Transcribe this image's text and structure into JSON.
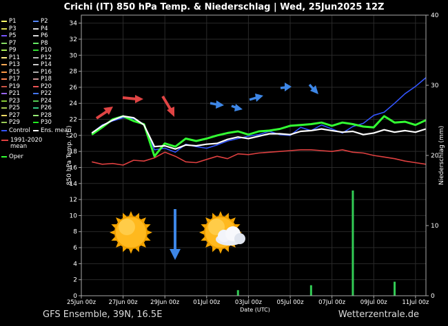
{
  "chart_data": {
    "type": "line",
    "title": "Crichi  (IT)  850 hPa Temp. & Niederschlag | Wed, 25Jun2025 12Z",
    "ylabel": "850 hPa Temp. (°C)",
    "y2label": "Niederschlag (mm)",
    "xlabel": "Date (UTC)",
    "ylim": [
      0,
      35
    ],
    "y2lim": [
      0,
      40
    ],
    "yticks": [
      0,
      2,
      4,
      6,
      8,
      10,
      12,
      14,
      16,
      18,
      20,
      22,
      24,
      26,
      28,
      30,
      32,
      34
    ],
    "y2ticks": [
      0,
      10,
      20,
      30,
      40
    ],
    "x_dates": [
      "25Jun 00z",
      "27Jun 00z",
      "29Jun 00z",
      "01Jul 00z",
      "03Jul 00z",
      "05Jul 00z",
      "07Jul 00z",
      "09Jul 00z",
      "11Jul 00z"
    ],
    "grid": true,
    "legend_position": "left outside",
    "x": [
      0.5,
      1.0,
      1.5,
      2.0,
      2.5,
      3.0,
      3.5,
      4.0,
      4.5,
      5.0,
      5.5,
      6.0,
      6.5,
      7.0,
      7.5,
      8.0,
      8.5,
      9.0,
      9.5,
      10.0,
      10.5,
      11.0,
      11.5,
      12.0,
      12.5,
      13.0,
      13.5,
      14.0,
      14.5,
      15.0,
      15.5,
      16.0,
      16.5
    ],
    "series": [
      {
        "name": "Ens. mean",
        "color": "#ffffff",
        "values": [
          20.3,
          21.2,
          21.9,
          22.4,
          22.2,
          21.3,
          18.6,
          18.7,
          18.3,
          18.8,
          18.7,
          18.9,
          19.0,
          19.5,
          19.8,
          19.6,
          19.9,
          20.2,
          20.2,
          20.1,
          20.5,
          20.6,
          20.8,
          20.6,
          20.4,
          20.5,
          20.1,
          20.3,
          20.7,
          20.4,
          20.6,
          20.4,
          20.8
        ]
      },
      {
        "name": "1991-2020 mean",
        "color": "#e04040",
        "values": [
          16.7,
          16.4,
          16.5,
          16.3,
          16.9,
          16.8,
          17.2,
          17.9,
          17.4,
          16.7,
          16.6,
          17.0,
          17.4,
          17.1,
          17.7,
          17.6,
          17.8,
          17.9,
          18.0,
          18.1,
          18.2,
          18.2,
          18.1,
          18.0,
          18.2,
          17.9,
          17.8,
          17.5,
          17.3,
          17.1,
          16.8,
          16.6,
          16.4
        ]
      },
      {
        "name": "Oper",
        "color": "#33ff33",
        "values": [
          20.1,
          21.0,
          22.0,
          22.4,
          21.8,
          21.4,
          17.4,
          19.0,
          18.6,
          19.6,
          19.3,
          19.6,
          20.0,
          20.3,
          20.5,
          20.1,
          20.5,
          20.6,
          20.8,
          21.2,
          21.3,
          21.4,
          21.6,
          21.2,
          21.6,
          21.4,
          21.1,
          21.0,
          22.4,
          21.6,
          21.7,
          21.3,
          21.9
        ]
      },
      {
        "name": "Control",
        "color": "#3355ff",
        "values": [
          20.3,
          21.3,
          21.8,
          22.2,
          22.1,
          21.4,
          18.2,
          18.4,
          17.9,
          18.9,
          18.6,
          18.4,
          18.8,
          19.3,
          19.6,
          19.9,
          20.1,
          20.5,
          20.1,
          20.0,
          21.0,
          20.6,
          21.3,
          20.8,
          20.3,
          21.1,
          21.5,
          22.5,
          22.9,
          24.0,
          25.2,
          26.1,
          27.2
        ]
      }
    ],
    "precipitation_mm": {
      "x": [
        7.5,
        11.0,
        13.0,
        15.0
      ],
      "values": [
        0.8,
        1.5,
        15.0,
        2.0
      ]
    },
    "legend": [
      [
        "P1",
        "P2"
      ],
      [
        "P3",
        "P4"
      ],
      [
        "P5",
        "P6"
      ],
      [
        "P7",
        "P8"
      ],
      [
        "P9",
        "P10"
      ],
      [
        "P11",
        "P12"
      ],
      [
        "P13",
        "P14"
      ],
      [
        "P15",
        "P16"
      ],
      [
        "P17",
        "P18"
      ],
      [
        "P19",
        "P20"
      ],
      [
        "P21",
        "P22"
      ],
      [
        "P23",
        "P24"
      ],
      [
        "P25",
        "P26"
      ],
      [
        "P27",
        "P28"
      ],
      [
        "P29",
        "P30"
      ]
    ],
    "legend_colors": {
      "P1": "#ffff66",
      "P2": "#5588ff",
      "P3": "#dddd55",
      "P4": "#dddddd",
      "P5": "#7755ff",
      "P6": "#dddddd",
      "P7": "#88dd66",
      "P8": "#66ee66",
      "P9": "#aaee55",
      "P10": "#33dd33",
      "P11": "#ffee88",
      "P12": "#bbbbbb",
      "P13": "#ffaa55",
      "P14": "#cccccc",
      "P15": "#ff9944",
      "P16": "#aaaaaa",
      "P17": "#ff8855",
      "P18": "#cc9999",
      "P19": "#cc5544",
      "P20": "#ee5555",
      "P21": "#9966ff",
      "P22": "#4477ff",
      "P23": "#88cc33",
      "P24": "#55cc55",
      "P25": "#aacc55",
      "P26": "#33cc88",
      "P27": "#ffdd66",
      "P28": "#99ee77",
      "P29": "#99cc55",
      "P30": "#22ee22"
    },
    "legend_extra": {
      "control": "Control",
      "ens_mean": "Ens. mean",
      "clim_mean_1": "1991-2020",
      "clim_mean_2": "mean",
      "oper": "Oper"
    }
  },
  "footer": {
    "left": "GFS Ensemble, 39N, 16.5E",
    "right": "Wetterzentrale.de"
  },
  "icons": [
    "sun-icon",
    "sun-cloud-icon",
    "arrow-down-icon",
    "arrow-right-red-icon",
    "arrow-right-blue-icon"
  ]
}
